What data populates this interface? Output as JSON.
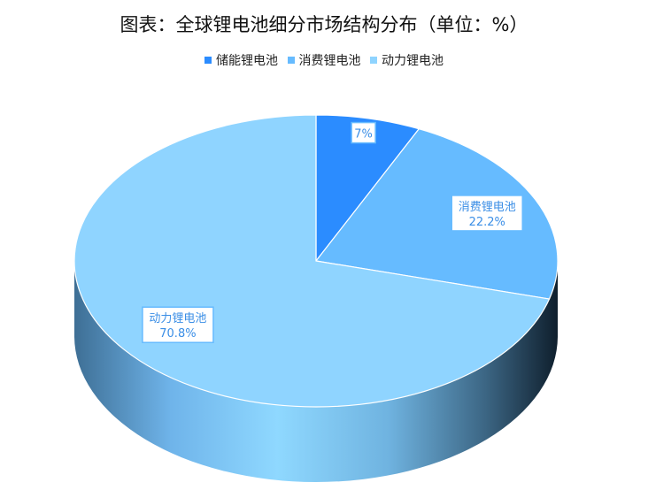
{
  "chart_data": {
    "type": "pie",
    "style": "3d",
    "title": "图表：全球锂电池细分市场结构分布（单位：%）",
    "legend_position": "top",
    "categories": [
      "储能锂电池",
      "消费锂电池",
      "动力锂电池"
    ],
    "values": [
      7,
      22.2,
      70.8
    ],
    "data_labels": [
      {
        "category": "",
        "value": "7%"
      },
      {
        "category": "消费锂电池",
        "value": "22.2%"
      },
      {
        "category": "动力锂电池",
        "value": "70.8%"
      }
    ],
    "colors": [
      "#2b8cff",
      "#66bbff",
      "#8fd4ff"
    ],
    "label_color": "#3a8ee6"
  }
}
